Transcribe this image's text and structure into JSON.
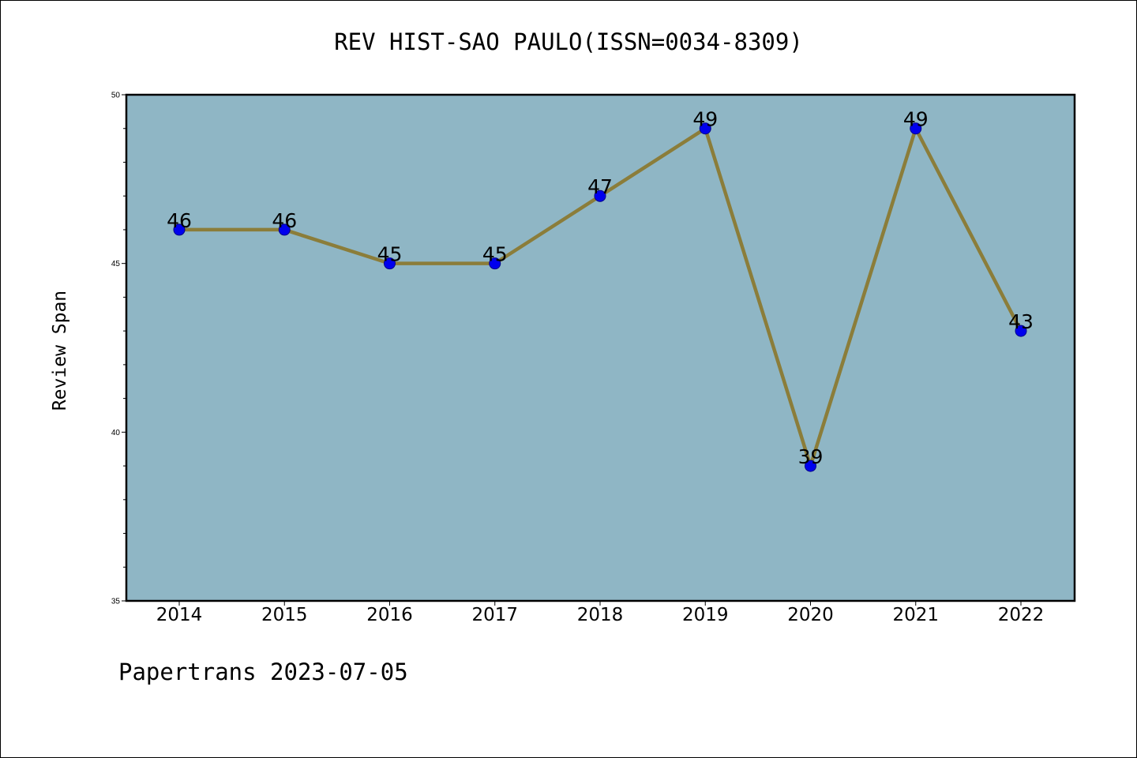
{
  "chart_data": {
    "type": "line",
    "title": "REV HIST-SAO PAULO(ISSN=0034-8309)",
    "xlabel": "",
    "ylabel": "Review Span",
    "categories": [
      "2014",
      "2015",
      "2016",
      "2017",
      "2018",
      "2019",
      "2020",
      "2021",
      "2022"
    ],
    "series": [
      {
        "values": [
          46,
          46,
          45,
          45,
          47,
          49,
          39,
          49,
          43
        ]
      }
    ],
    "data_labels": [
      "46",
      "46",
      "45",
      "45",
      "47",
      "49",
      "39",
      "49",
      "43"
    ],
    "ylim": [
      35,
      50
    ],
    "yticks": [
      35,
      40,
      45,
      50
    ],
    "grid": false,
    "colors": {
      "plot_background": "#8fb6c5",
      "line": "#8b7d3a",
      "marker": "#0000ee",
      "marker_edge": "#00008b"
    }
  },
  "footer": {
    "text": "Papertrans 2023-07-05"
  }
}
